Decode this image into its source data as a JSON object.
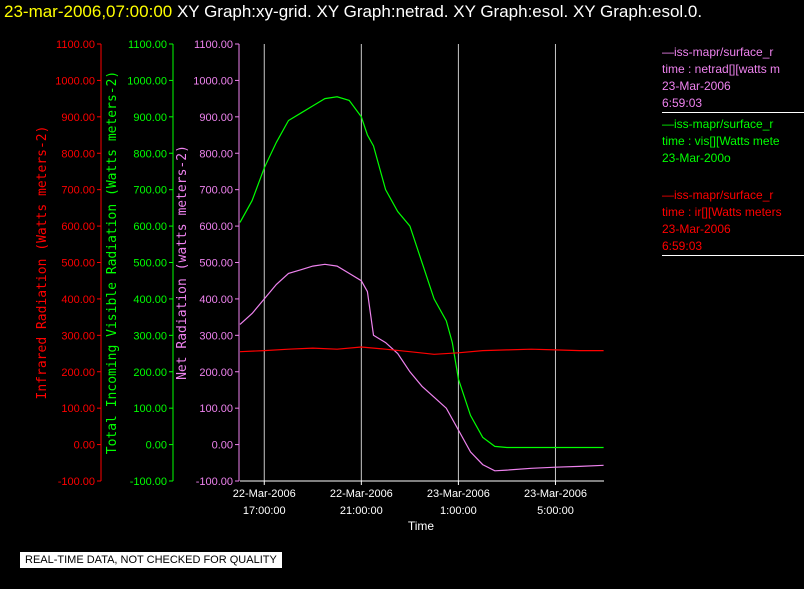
{
  "header": {
    "timestamp": "23-mar-2006,07:00:00",
    "graphs": [
      "XY Graph:xy-grid.",
      "XY Graph:netrad.",
      "XY Graph:esol.",
      "XY Graph:esol.0."
    ]
  },
  "legend": [
    {
      "lines": [
        "—iss-mapr/surface_r",
        "time : netrad[][watts m",
        "23-Mar-2006",
        "6:59:03"
      ],
      "color": "#ee82ee"
    },
    {
      "lines": [
        "—iss-mapr/surface_r",
        "time : vis[][Watts mete",
        "23-Mar-200o"
      ],
      "color": "#00ff00"
    },
    {
      "lines": [
        "—iss-mapr/surface_r",
        "time : ir[][Watts meters",
        "23-Mar-2006",
        "6:59:03"
      ],
      "color": "#ff0000"
    }
  ],
  "notice": "REAL-TIME DATA, NOT CHECKED FOR QUALITY",
  "chart_data": {
    "type": "line",
    "xlabel": "Time",
    "x_range": [
      "22-Mar-2006 16:00",
      "23-Mar-2006 07:00"
    ],
    "x_ticks": [
      {
        "t": "22-Mar-2006 17:00",
        "label": [
          "22-Mar-2006",
          "17:00:00"
        ]
      },
      {
        "t": "22-Mar-2006 21:00",
        "label": [
          "22-Mar-2006",
          "21:00:00"
        ]
      },
      {
        "t": "23-Mar-2006 01:00",
        "label": [
          "23-Mar-2006",
          "1:00:00"
        ]
      },
      {
        "t": "23-Mar-2006 05:00",
        "label": [
          "23-Mar-2006",
          "5:00:00"
        ]
      }
    ],
    "y_axes": [
      {
        "label": "Infrared Radiation (Watts meters-2)",
        "color": "#ff0000",
        "ylim": [
          -100,
          1100
        ]
      },
      {
        "label": "Total Incoming Visible Radiation (Watts meters-2)",
        "color": "#00ff00",
        "ylim": [
          -100,
          1100
        ]
      },
      {
        "label": "Net Radiation (watts meters-2)",
        "color": "#ee82ee",
        "ylim": [
          -100,
          1100
        ]
      }
    ],
    "y_ticks": [
      "-100.00",
      "0.00",
      "100.00",
      "200.00",
      "300.00",
      "400.00",
      "500.00",
      "600.00",
      "700.00",
      "800.00",
      "900.00",
      "1000.00",
      "1100.00"
    ],
    "grid": "vertical lines at x ticks",
    "series": [
      {
        "color": "#00ff00",
        "x": [
          "22-Mar-2006 16:00",
          "22-Mar-2006 16:30",
          "22-Mar-2006 17:00",
          "22-Mar-2006 17:30",
          "22-Mar-2006 18:00",
          "22-Mar-2006 18:30",
          "22-Mar-2006 19:00",
          "22-Mar-2006 19:30",
          "22-Mar-2006 20:00",
          "22-Mar-2006 20:30",
          "22-Mar-2006 21:00",
          "22-Mar-2006 21:15",
          "22-Mar-2006 21:30",
          "22-Mar-2006 22:00",
          "22-Mar-2006 22:30",
          "22-Mar-2006 23:00",
          "22-Mar-2006 23:30",
          "23-Mar-2006 00:00",
          "23-Mar-2006 00:30",
          "23-Mar-2006 00:45",
          "23-Mar-2006 01:00",
          "23-Mar-2006 01:30",
          "23-Mar-2006 02:00",
          "23-Mar-2006 02:30",
          "23-Mar-2006 03:00",
          "23-Mar-2006 04:00",
          "23-Mar-2006 05:00",
          "23-Mar-2006 06:00",
          "23-Mar-2006 06:59"
        ],
        "values": [
          610,
          670,
          760,
          830,
          890,
          910,
          930,
          950,
          955,
          945,
          900,
          850,
          820,
          700,
          640,
          600,
          500,
          400,
          340,
          280,
          180,
          80,
          20,
          -5,
          -8,
          -8,
          -8,
          -8,
          -8
        ]
      },
      {
        "color": "#ee82ee",
        "x": [
          "22-Mar-2006 16:00",
          "22-Mar-2006 16:30",
          "22-Mar-2006 17:00",
          "22-Mar-2006 17:30",
          "22-Mar-2006 18:00",
          "22-Mar-2006 18:30",
          "22-Mar-2006 19:00",
          "22-Mar-2006 19:30",
          "22-Mar-2006 20:00",
          "22-Mar-2006 20:30",
          "22-Mar-2006 21:00",
          "22-Mar-2006 21:15",
          "22-Mar-2006 21:30",
          "22-Mar-2006 22:00",
          "22-Mar-2006 22:30",
          "22-Mar-2006 23:00",
          "22-Mar-2006 23:30",
          "23-Mar-2006 00:00",
          "23-Mar-2006 00:30",
          "23-Mar-2006 01:00",
          "23-Mar-2006 01:30",
          "23-Mar-2006 02:00",
          "23-Mar-2006 02:30",
          "23-Mar-2006 03:00",
          "23-Mar-2006 04:00",
          "23-Mar-2006 05:00",
          "23-Mar-2006 06:00",
          "23-Mar-2006 06:59"
        ],
        "values": [
          330,
          360,
          400,
          440,
          470,
          480,
          490,
          495,
          490,
          470,
          450,
          420,
          300,
          280,
          250,
          200,
          160,
          130,
          100,
          40,
          -20,
          -55,
          -72,
          -70,
          -65,
          -62,
          -60,
          -57
        ]
      },
      {
        "color": "#ff0000",
        "x": [
          "22-Mar-2006 16:00",
          "22-Mar-2006 17:00",
          "22-Mar-2006 18:00",
          "22-Mar-2006 19:00",
          "22-Mar-2006 20:00",
          "22-Mar-2006 21:00",
          "22-Mar-2006 22:00",
          "22-Mar-2006 23:00",
          "23-Mar-2006 00:00",
          "23-Mar-2006 01:00",
          "23-Mar-2006 02:00",
          "23-Mar-2006 03:00",
          "23-Mar-2006 04:00",
          "23-Mar-2006 05:00",
          "23-Mar-2006 06:00",
          "23-Mar-2006 06:59"
        ],
        "values": [
          255,
          258,
          262,
          265,
          262,
          268,
          262,
          255,
          248,
          252,
          258,
          260,
          262,
          260,
          258,
          258
        ]
      }
    ]
  }
}
